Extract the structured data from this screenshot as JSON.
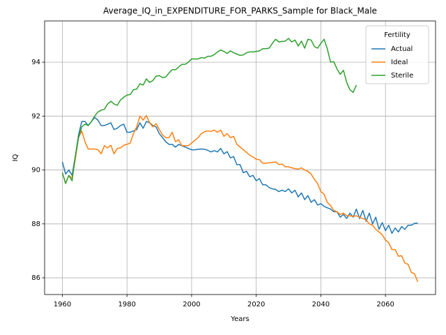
{
  "chart_data": {
    "type": "line",
    "title": "Average_IQ_in_EXPENDITURE_FOR_PARKS_Sample for Black_Male",
    "xlabel": "Years",
    "ylabel": "IQ",
    "legend_title": "Fertility",
    "legend": "upper right",
    "grid": true,
    "x": [
      1960,
      1961,
      1962,
      1963,
      1964,
      1965,
      1966,
      1967,
      1968,
      1969,
      1970,
      1971,
      1972,
      1973,
      1974,
      1975,
      1976,
      1977,
      1978,
      1979,
      1980,
      1981,
      1982,
      1983,
      1984,
      1985,
      1986,
      1987,
      1988,
      1989,
      1990,
      1991,
      1992,
      1993,
      1994,
      1995,
      1996,
      1997,
      1998,
      1999,
      2000,
      2001,
      2002,
      2003,
      2004,
      2005,
      2006,
      2007,
      2008,
      2009,
      2010,
      2011,
      2012,
      2013,
      2014,
      2015,
      2016,
      2017,
      2018,
      2019,
      2020,
      2021,
      2022,
      2023,
      2024,
      2025,
      2026,
      2027,
      2028,
      2029,
      2030,
      2031,
      2032,
      2033,
      2034,
      2035,
      2036,
      2037,
      2038,
      2039,
      2040,
      2041,
      2042,
      2043,
      2044,
      2045,
      2046,
      2047,
      2048,
      2049,
      2050,
      2051,
      2052,
      2053,
      2054,
      2055,
      2056,
      2057,
      2058,
      2059,
      2060,
      2061,
      2062,
      2063,
      2064,
      2065,
      2066,
      2067,
      2068,
      2069,
      2070
    ],
    "xlim": [
      1954.5,
      2075.5
    ],
    "xticks": [
      1960,
      1980,
      2000,
      2020,
      2040,
      2060
    ],
    "ylim": [
      85.38,
      95.53
    ],
    "yticks": [
      86,
      88,
      90,
      92,
      94
    ],
    "series": [
      {
        "name": "Actual",
        "color": "#1f77b4",
        "values": [
          90.3,
          89.85,
          90.0,
          89.8,
          90.5,
          91.3,
          91.8,
          91.8,
          91.65,
          91.8,
          91.95,
          91.85,
          91.65,
          91.65,
          91.7,
          91.75,
          91.5,
          91.55,
          91.65,
          91.7,
          91.4,
          91.4,
          91.45,
          91.5,
          91.75,
          91.55,
          91.8,
          91.75,
          91.65,
          91.6,
          91.35,
          91.2,
          91.05,
          90.95,
          90.95,
          90.85,
          90.95,
          90.9,
          90.85,
          90.8,
          90.75,
          90.75,
          90.77,
          90.78,
          90.77,
          90.73,
          90.67,
          90.72,
          90.67,
          90.8,
          90.6,
          90.68,
          90.45,
          90.5,
          90.2,
          90.2,
          89.9,
          89.95,
          89.75,
          89.8,
          89.6,
          89.68,
          89.45,
          89.45,
          89.35,
          89.3,
          89.28,
          89.2,
          89.25,
          89.2,
          89.3,
          89.15,
          89.25,
          89.0,
          89.15,
          88.9,
          89.05,
          88.8,
          88.9,
          88.7,
          88.75,
          88.65,
          88.6,
          88.55,
          88.45,
          88.45,
          88.25,
          88.35,
          88.2,
          88.4,
          88.25,
          88.55,
          88.2,
          88.5,
          88.1,
          88.4,
          88.0,
          88.25,
          87.8,
          88.05,
          87.75,
          87.95,
          87.65,
          87.85,
          87.7,
          87.9,
          87.8,
          87.95,
          87.95,
          88.02,
          88.03
        ]
      },
      {
        "name": "Ideal",
        "color": "#ff7f0e",
        "values": [
          89.9,
          89.5,
          89.8,
          89.7,
          90.4,
          91.2,
          91.45,
          91.05,
          90.78,
          90.78,
          90.78,
          90.75,
          90.6,
          90.9,
          90.82,
          90.92,
          90.6,
          90.8,
          90.82,
          90.92,
          90.95,
          91.0,
          91.35,
          91.6,
          92.0,
          91.85,
          92.02,
          91.75,
          91.6,
          91.72,
          91.5,
          91.3,
          91.2,
          91.2,
          91.4,
          91.05,
          91.12,
          90.9,
          90.9,
          90.9,
          91.0,
          91.1,
          91.2,
          91.35,
          91.42,
          91.45,
          91.43,
          91.48,
          91.4,
          91.48,
          91.25,
          91.35,
          91.2,
          91.25,
          90.95,
          90.85,
          90.75,
          90.65,
          90.55,
          90.48,
          90.4,
          90.38,
          90.25,
          90.25,
          90.27,
          90.28,
          90.3,
          90.2,
          90.22,
          90.12,
          90.12,
          90.08,
          90.05,
          90.03,
          90.08,
          90.0,
          89.95,
          89.85,
          89.65,
          89.5,
          89.2,
          89.1,
          88.8,
          88.68,
          88.5,
          88.45,
          88.35,
          88.4,
          88.3,
          88.3,
          88.28,
          88.3,
          88.25,
          88.2,
          88.15,
          88.0,
          87.95,
          87.8,
          87.7,
          87.6,
          87.4,
          87.3,
          87.05,
          87.05,
          86.8,
          86.82,
          86.55,
          86.5,
          86.2,
          86.15,
          85.85
        ]
      },
      {
        "name": "Sterile",
        "color": "#2ca02c",
        "values": [
          89.9,
          89.5,
          89.8,
          89.6,
          90.5,
          91.2,
          91.6,
          91.7,
          91.65,
          91.8,
          92.0,
          92.15,
          92.22,
          92.25,
          92.45,
          92.55,
          92.45,
          92.4,
          92.6,
          92.7,
          92.78,
          92.8,
          92.98,
          93.0,
          93.2,
          93.15,
          93.38,
          93.25,
          93.32,
          93.48,
          93.5,
          93.43,
          93.45,
          93.6,
          93.72,
          93.72,
          93.82,
          93.92,
          93.92,
          94.0,
          94.12,
          94.12,
          94.12,
          94.17,
          94.15,
          94.22,
          94.22,
          94.28,
          94.38,
          94.45,
          94.4,
          94.32,
          94.42,
          94.35,
          94.3,
          94.25,
          94.27,
          94.35,
          94.38,
          94.38,
          94.4,
          94.42,
          94.5,
          94.5,
          94.52,
          94.7,
          94.85,
          94.75,
          94.77,
          94.78,
          94.88,
          94.75,
          94.82,
          94.6,
          94.78,
          94.52,
          94.85,
          94.82,
          94.58,
          94.52,
          94.7,
          94.85,
          94.5,
          94.0,
          94.02,
          93.75,
          93.55,
          93.7,
          93.25,
          92.98,
          92.88,
          93.15,
          null,
          null,
          null,
          null,
          null,
          null,
          null,
          null,
          null,
          null,
          null,
          null,
          null,
          null,
          null,
          null,
          null,
          null,
          null
        ]
      }
    ]
  }
}
